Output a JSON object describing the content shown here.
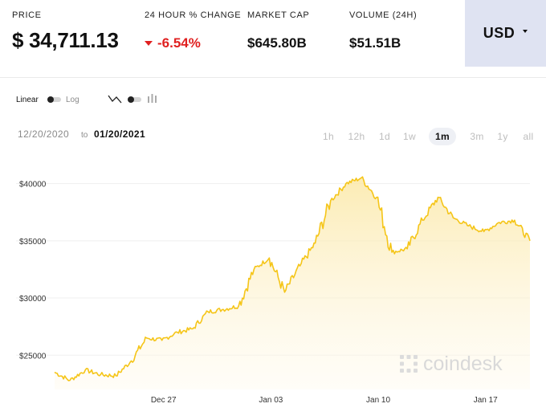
{
  "header": {
    "price_label": "PRICE",
    "price_value": "$ 34,711.13",
    "change_label": "24 HOUR % CHANGE",
    "change_value": "-6.54%",
    "marketcap_label": "MARKET CAP",
    "marketcap_value": "$645.80B",
    "volume_label": "VOLUME (24H)",
    "volume_value": "$51.51B",
    "currency": "USD"
  },
  "colors": {
    "accent": "#f5c518",
    "negative": "#e02020",
    "currency_bg": "#dfe3f2"
  },
  "controls": {
    "scale_linear": "Linear",
    "scale_log": "Log",
    "scale_selected": "Linear",
    "chart_type_icons": [
      "line-chart-icon",
      "bar-chart-icon"
    ],
    "chart_type_selected": "line",
    "range_from": "12/20/2020",
    "range_to_word": "to",
    "range_to": "01/20/2021",
    "timeframes": [
      "1h",
      "12h",
      "1d",
      "1w",
      "1m",
      "3m",
      "1y",
      "all"
    ],
    "timeframe_selected": "1m"
  },
  "watermark": "coindesk",
  "chart_data": {
    "type": "area",
    "title": "",
    "xlabel": "",
    "ylabel": "",
    "x_tick_labels": [
      "Dec 27",
      "Jan 03",
      "Jan 10",
      "Jan 17"
    ],
    "y_tick_labels": [
      "$40000",
      "$35000",
      "$30000",
      "$25000"
    ],
    "y_ticks": [
      40000,
      35000,
      30000,
      25000
    ],
    "ylim": [
      22000,
      42500
    ],
    "xlim": [
      "2020-12-20",
      "2021-01-20"
    ],
    "grid": "horizontal",
    "line_color": "#f5c518",
    "series": [
      {
        "x": [
          "2020-12-20",
          "2020-12-21",
          "2020-12-22",
          "2020-12-23",
          "2020-12-24",
          "2020-12-25",
          "2020-12-26",
          "2020-12-27",
          "2020-12-28",
          "2020-12-29",
          "2020-12-30",
          "2020-12-31",
          "2021-01-01",
          "2021-01-02",
          "2021-01-03",
          "2021-01-04",
          "2021-01-05",
          "2021-01-06",
          "2021-01-07",
          "2021-01-08",
          "2021-01-09",
          "2021-01-10",
          "2021-01-11",
          "2021-01-12",
          "2021-01-13",
          "2021-01-14",
          "2021-01-15",
          "2021-01-16",
          "2021-01-17",
          "2021-01-18",
          "2021-01-19",
          "2021-01-20"
        ],
        "values": [
          23500,
          22800,
          23700,
          23300,
          23200,
          24500,
          26500,
          26300,
          27000,
          27300,
          28800,
          29000,
          29300,
          32500,
          33500,
          30500,
          32800,
          34800,
          38500,
          40000,
          40500,
          38800,
          34000,
          34300,
          36800,
          38800,
          37000,
          36300,
          35800,
          36600,
          36800,
          35000
        ]
      }
    ]
  }
}
